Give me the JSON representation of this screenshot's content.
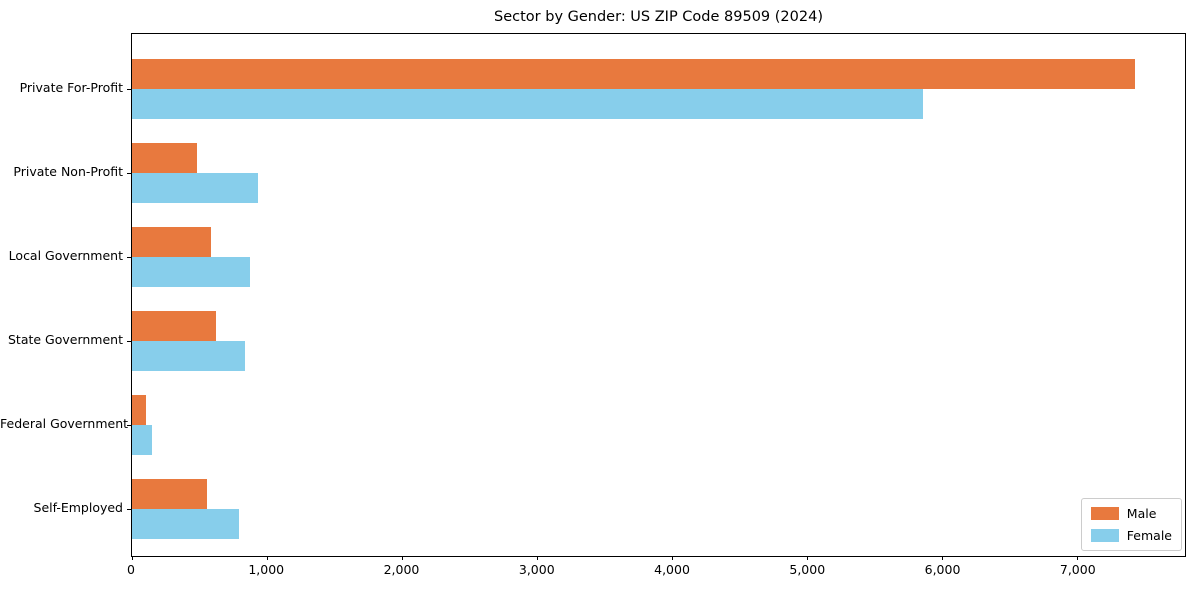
{
  "chart_data": {
    "type": "bar",
    "orientation": "horizontal",
    "title": "Sector by Gender: US ZIP Code 89509 (2024)",
    "categories": [
      "Private For-Profit",
      "Private Non-Profit",
      "Local Government",
      "State Government",
      "Federal Government",
      "Self-Employed"
    ],
    "series": [
      {
        "name": "Male",
        "color": "#e8793e",
        "values": [
          7430,
          480,
          585,
          620,
          105,
          555
        ]
      },
      {
        "name": "Female",
        "color": "#87ceeb",
        "values": [
          5860,
          930,
          875,
          840,
          150,
          795
        ]
      }
    ],
    "xlim": [
      0,
      7800
    ],
    "xticks": [
      0,
      1000,
      2000,
      3000,
      4000,
      5000,
      6000,
      7000
    ],
    "xtick_labels": [
      "0",
      "1,000",
      "2,000",
      "3,000",
      "4,000",
      "5,000",
      "6,000",
      "7,000"
    ],
    "grid": false,
    "legend": {
      "position": "lower right",
      "entries": [
        "Male",
        "Female"
      ]
    }
  }
}
